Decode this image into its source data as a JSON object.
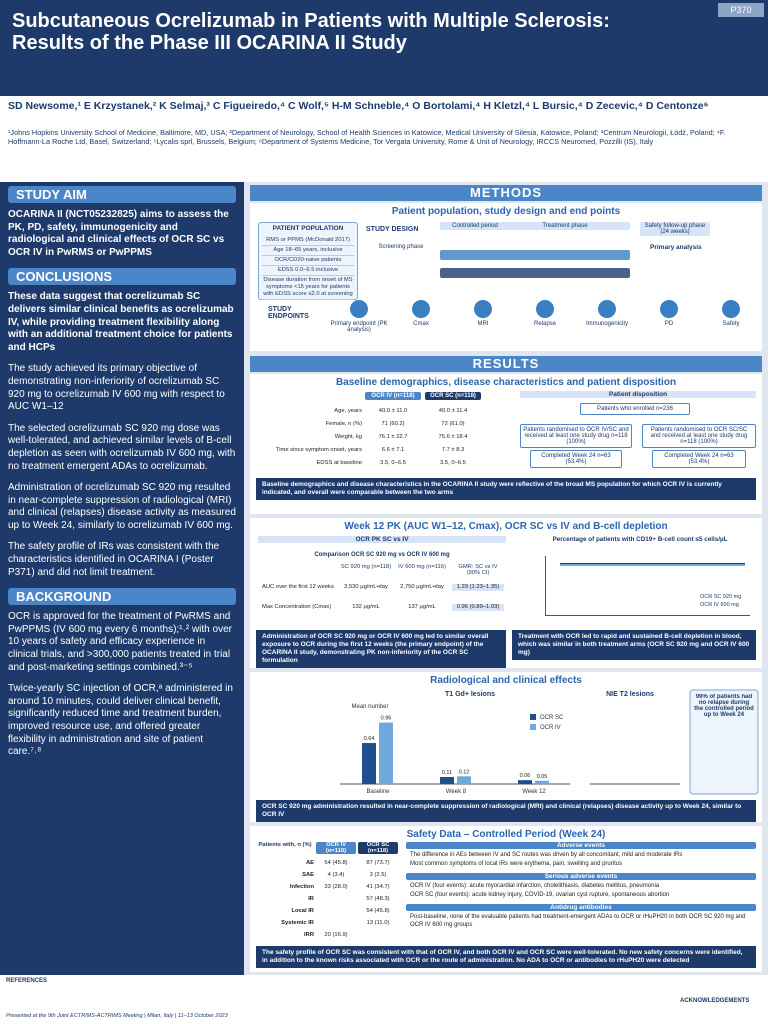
{
  "header": {
    "poster_id": "P370",
    "title": "Subcutaneous Ocrelizumab in Patients with Multiple Sclerosis: Results of the Phase III OCARINA II Study",
    "authors": "SD Newsome,¹ E Krzystanek,² K Selmaj,³ C Figueiredo,⁴ C Wolf,⁵ H-M Schneble,⁴ O Bortolami,⁴ H Kletzl,⁴ L Bursic,⁴ D Zecevic,⁴ D Centonze⁶",
    "affiliations": "¹Johns Hopkins University School of Medicine, Baltimore, MD, USA; ²Department of Neurology, School of Health Sciences in Katowice, Medical University of Silesia, Katowice, Poland; ³Centrum Neurologii, Łódź, Poland; ⁴F. Hoffmann-La Roche Ltd, Basel, Switzerland; ⁵Lycalis sprl, Brussels, Belgium; ⁶Department of Systems Medicine, Tor Vergata University, Rome & Unit of Neurology, IRCCS Neuromed, Pozzilli (IS), Italy"
  },
  "left": {
    "study_aim": {
      "heading": "STUDY AIM",
      "text": "OCARINA II (NCT05232825) aims to assess the PK, PD, safety, immunogenicity and radiological and clinical effects of OCR SC vs OCR IV in PwRMS or PwPPMS"
    },
    "conclusions": {
      "heading": "CONCLUSIONS",
      "lead": "These data suggest that ocrelizumab SC delivers similar clinical benefits as ocrelizumab IV, while providing treatment flexibility along with an additional treatment choice for patients and HCPs",
      "points": [
        "The study achieved its primary objective of demonstrating non-inferiority of ocrelizumab SC 920 mg to ocrelizumab IV 600 mg with respect to AUC W1–12",
        "The selected ocrelizumab SC 920 mg dose was well-tolerated, and achieved similar levels of B-cell depletion as seen with ocrelizumab IV 600 mg, with no treatment emergent ADAs to ocrelizumab.",
        "Administration of ocrelizumab SC 920 mg resulted in near-complete suppression of radiological (MRI) and clinical (relapses) disease activity as measured up to Week 24, similarly to ocrelizumab IV 600 mg.",
        "The safety profile of IRs was consistent with the characteristics identified in OCARINA I (Poster P371) and did not limit treatment."
      ]
    },
    "background": {
      "heading": "BACKGROUND",
      "points": [
        "OCR is approved for the treatment of PwRMS and PwPPMS (IV 600 mg every 6 months);¹˒² with over 10 years of safety and efficacy experience in clinical trials, and >300,000 patients treated in trial and post-marketing settings combined.³⁻⁵",
        "Twice-yearly SC injection of OCR,ᵃ administered in around 10 minutes, could deliver clinical benefit, significantly reduced time and treatment burden, improved resource use, and offered greater flexibility in administration and site of patient care.⁷˒⁸"
      ]
    }
  },
  "methods": {
    "heading": "METHODS",
    "subheading": "Patient population, study design and end points",
    "population": {
      "heading": "PATIENT POPULATION",
      "criteria": [
        "RMS or PPMS (McDonald 2017)",
        "Age 18–65 years, inclusive",
        "OCR/CD20-naive patients",
        "EDSS 0.0–6.5 inclusive",
        "Disease duration from onset of MS symptoms <15 years for patients with EDSS score ≤2.0 at screening"
      ]
    },
    "design_label": "STUDY DESIGN",
    "design_steps": [
      "Screening phase",
      "Controlled period",
      "Treatment phase",
      "Safety follow-up phase (24 weeks)"
    ],
    "primary_analysis": "Primary analysis",
    "endpoints_label": "STUDY ENDPOINTS",
    "endpoints": [
      "Primary endpoint (PK analysis)",
      "Cmax",
      "MRI",
      "Relapse",
      "Immunogenicity",
      "PD",
      "Safety"
    ]
  },
  "results": {
    "heading": "RESULTS",
    "baseline": {
      "heading": "Baseline demographics, disease characteristics and patient disposition",
      "columns": [
        "OCR IV (n=118)",
        "OCR SC (n=118)"
      ],
      "rows": [
        [
          "Age, years",
          "40.0 ± 11.0",
          "40.0 ± 11.4"
        ],
        [
          "Female, n (%)",
          "71 (60.2)",
          "72 (61.0)"
        ],
        [
          "Weight, kg",
          "76.1 ± 22.7",
          "75.6 ± 18.4"
        ],
        [
          "Time since symptom onset, years",
          "6.6 ± 7.1",
          "7.7 ± 8.3"
        ],
        [
          "EDSS at baseline",
          "3.5, 0–6.5",
          "3.5, 0–6.5"
        ]
      ],
      "disposition": {
        "heading": "Patient disposition",
        "enrolled": "Patients who enrolled n=236",
        "iv": "Patients randomised to OCR IV/SC and received at least one study drug n=118 (100%)",
        "sc": "Patients randomised to OCR SC/SC and received at least one study drug n=118 (100%)",
        "iv_completed": "Completed Week 24 n=63 (53.4%)",
        "sc_completed": "Completed Week 24 n=63 (53.4%)"
      },
      "callout": "Baseline demographics and disease characteristics in the OCARINA II study were reflective of the broad MS population for which OCR IV is currently indicated, and overall were comparable between the two arms"
    },
    "pk": {
      "heading": "Week 12 PK (AUC W1–12, Cmax), OCR SC vs IV and B-cell depletion",
      "table_heading": "OCR PK SC vs IV",
      "comparison": "Comparison OCR SC 920 mg vs OCR IV 600 mg",
      "columns": [
        "SC 920 mg (n=118)",
        "IV 600 mg (n=116)",
        "GMR: SC vs IV (90% CI)"
      ],
      "rows": [
        [
          "AUC over the first 12 weeks",
          "3,530 μg/mL•day",
          "2,750 μg/mL•day",
          "1.29 (1.23–1.35)"
        ],
        [
          "Max Concentration (Cmax)",
          "132 μg/mL",
          "137 μg/mL",
          "0.96 (0.89–1.03)"
        ]
      ],
      "bcell_heading": "Percentage of patients with CD19+ B-cell count ≤5 cells/µL",
      "legend": [
        "OCR SC 920 mg",
        "OCR IV 600 mg"
      ],
      "callout_left": "Administration of OCR SC 920 mg or OCR IV 600 mg led to similar overall exposure to OCR during the first 12 weeks (the primary endpoint) of the OCARINA II study, demonstrating PK non-inferiority of the OCR SC formulation",
      "callout_right": "Treatment with OCR led to rapid and sustained B-cell depletion in blood, which was similar in both treatment arms (OCR SC 920 mg and OCR IV 600 mg)"
    },
    "radiological": {
      "heading": "Radiological and clinical effects",
      "t1": {
        "title": "T1 Gd+ lesions",
        "y_label": "Mean number",
        "categories": [
          "Baseline",
          "Week 8",
          "Week 12"
        ],
        "series": [
          {
            "name": "OCR SC",
            "color": "#1f4f8f",
            "values": [
              0.64,
              0.11,
              0.06
            ]
          },
          {
            "name": "OCR IV",
            "color": "#6fa8dc",
            "values": [
              0.96,
              0.12,
              0.05
            ]
          }
        ]
      },
      "t2_title": "NIE T2 lesions",
      "relapse_text": "99% of patients had no relapse during the controlled period up to Week 24",
      "callout": "OCR SC 920 mg administration resulted in near-complete suppression of radiological (MRI) and clinical (relapses) disease activity up to Week 24, similar to OCR IV"
    },
    "safety": {
      "heading": "Safety Data – Controlled Period (Week 24)",
      "columns": [
        "Patients with, n (%)",
        "OCR IV (n=118)",
        "OCR SC (n=118)"
      ],
      "rows": [
        [
          "AE",
          "54 (45.8)",
          "87 (73.7)"
        ],
        [
          "SAE",
          "4 (3.4)",
          "3 (2.5)"
        ],
        [
          "Infection",
          "33 (28.0)",
          "41 (34.7)"
        ],
        [
          "IR",
          "",
          "57 (48.3)"
        ],
        [
          "Local IR",
          "",
          "54 (45.8)"
        ],
        [
          "Systemic IR",
          "",
          "13 (11.0)"
        ],
        [
          "IRR",
          "20 (16.9)",
          ""
        ]
      ],
      "ae_heading": "Adverse events",
      "ae_points": [
        "The difference in AEs between IV and SC routes was driven by all concomitant, mild and moderate IRs",
        "Most common symptoms of local IRs were erythema, pain, swelling and pruritus"
      ],
      "sae_heading": "Serious adverse events",
      "sae_points": [
        "OCR IV (four events): acute myocardial infarction, cholelithiasis, diabetes mellitus, pneumonia",
        "OCR SC (four events): acute kidney injury, COVID-19, ovarian cyst rupture, spontaneous abortion"
      ],
      "ada_heading": "Antidrug antibodies",
      "ada_points": [
        "Post-baseline, none of the evaluable patients had treatment-emergent ADAs to OCR or rHuPH20 in both OCR SC 920 mg and OCR IV 600 mg groups"
      ],
      "callout": "The safety profile of OCR SC was consistent with that of OCR IV, and both OCR IV and OCR SC were well-tolerated. No new safety concerns were identified, in addition to the known risks associated with OCR or the route of administration. No ADA to OCR or antibodies to rHuPH20 were detected"
    }
  },
  "footer": {
    "references_heading": "REFERENCES",
    "presented": "Presented at the 9th Joint ECTRIMS-ACTRIMS Meeting | Milan, Italy | 11–13 October 2023",
    "acknowledgements_heading": "ACKNOWLEDGEMENTS"
  }
}
